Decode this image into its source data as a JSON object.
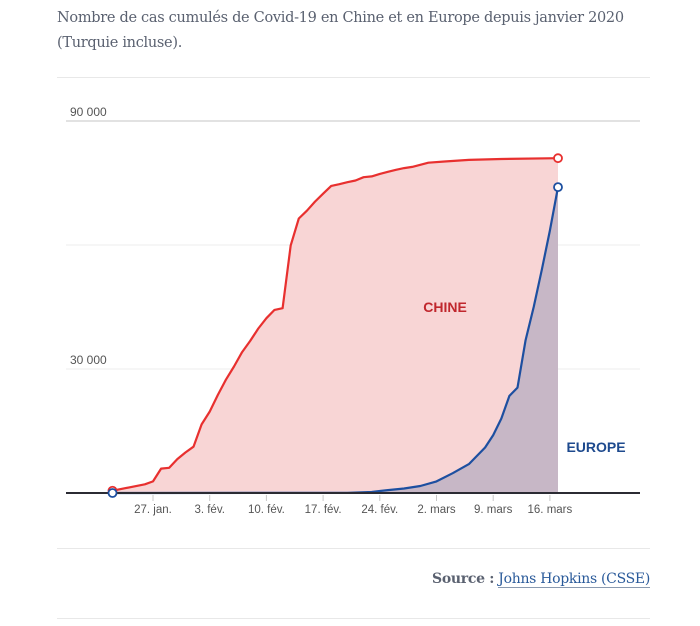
{
  "header": {
    "title": "Nombre de cas cumulés de Covid-19 en Chine et en Europe depuis janvier 2020 (Turquie incluse)."
  },
  "footer": {
    "source_label": "Source :",
    "source_link": "Johns Hopkins (CSSE)"
  },
  "chart_data": {
    "type": "area",
    "title": "Nombre de cas cumulés de Covid-19 en Chine et en Europe depuis janvier 2020 (Turquie incluse).",
    "xlabel": "",
    "ylabel": "",
    "xlim": [
      "2020-01-22",
      "2020-03-17"
    ],
    "ylim": [
      0,
      90000
    ],
    "grid": true,
    "legend": "inline labels",
    "y_ticks": [
      {
        "value": 30000,
        "label": "30 000"
      },
      {
        "value": 60000,
        "label": ""
      },
      {
        "value": 90000,
        "label": "90 000"
      }
    ],
    "x_ticks": [
      {
        "date": "2020-01-27",
        "label": "27. jan."
      },
      {
        "date": "2020-02-03",
        "label": "3. fév."
      },
      {
        "date": "2020-02-10",
        "label": "10. fév."
      },
      {
        "date": "2020-02-17",
        "label": "17. fév."
      },
      {
        "date": "2020-02-24",
        "label": "24. fév."
      },
      {
        "date": "2020-03-02",
        "label": "2. mars"
      },
      {
        "date": "2020-03-09",
        "label": "9. mars"
      },
      {
        "date": "2020-03-16",
        "label": "16. mars"
      }
    ],
    "series": [
      {
        "name": "CHINE",
        "color": "#e8302f",
        "fill": "#f8d5d5",
        "label_color": "#c0272d",
        "points": [
          [
            "2020-01-22",
            550
          ],
          [
            "2020-01-26",
            2100
          ],
          [
            "2020-01-27",
            2800
          ],
          [
            "2020-01-28",
            5900
          ],
          [
            "2020-01-29",
            6100
          ],
          [
            "2020-01-30",
            8200
          ],
          [
            "2020-01-31",
            9800
          ],
          [
            "2020-02-01",
            11200
          ],
          [
            "2020-02-02",
            16600
          ],
          [
            "2020-02-03",
            19700
          ],
          [
            "2020-02-04",
            23700
          ],
          [
            "2020-02-05",
            27400
          ],
          [
            "2020-02-06",
            30600
          ],
          [
            "2020-02-07",
            34100
          ],
          [
            "2020-02-08",
            36800
          ],
          [
            "2020-02-09",
            39800
          ],
          [
            "2020-02-10",
            42300
          ],
          [
            "2020-02-11",
            44300
          ],
          [
            "2020-02-12",
            44700
          ],
          [
            "2020-02-13",
            59900
          ],
          [
            "2020-02-14",
            66400
          ],
          [
            "2020-02-15",
            68300
          ],
          [
            "2020-02-16",
            70500
          ],
          [
            "2020-02-17",
            72400
          ],
          [
            "2020-02-18",
            74300
          ],
          [
            "2020-02-19",
            74700
          ],
          [
            "2020-02-20",
            75200
          ],
          [
            "2020-02-21",
            75600
          ],
          [
            "2020-02-22",
            76400
          ],
          [
            "2020-02-23",
            76600
          ],
          [
            "2020-02-24",
            77200
          ],
          [
            "2020-02-25",
            77700
          ],
          [
            "2020-02-26",
            78200
          ],
          [
            "2020-02-27",
            78600
          ],
          [
            "2020-02-28",
            78900
          ],
          [
            "2020-02-29",
            79400
          ],
          [
            "2020-03-01",
            79900
          ],
          [
            "2020-03-03",
            80200
          ],
          [
            "2020-03-06",
            80600
          ],
          [
            "2020-03-10",
            80800
          ],
          [
            "2020-03-17",
            81000
          ]
        ]
      },
      {
        "name": "EUROPE",
        "color": "#1d4fa0",
        "fill": "#c7b7c6",
        "label_color": "#1e4a8e",
        "points": [
          [
            "2020-01-22",
            0
          ],
          [
            "2020-02-20",
            50
          ],
          [
            "2020-02-23",
            250
          ],
          [
            "2020-02-25",
            700
          ],
          [
            "2020-02-27",
            1100
          ],
          [
            "2020-02-29",
            1700
          ],
          [
            "2020-03-02",
            2800
          ],
          [
            "2020-03-04",
            4800
          ],
          [
            "2020-03-06",
            7000
          ],
          [
            "2020-03-08",
            11000
          ],
          [
            "2020-03-09",
            14000
          ],
          [
            "2020-03-10",
            18000
          ],
          [
            "2020-03-11",
            23500
          ],
          [
            "2020-03-12",
            25500
          ],
          [
            "2020-03-13",
            37000
          ],
          [
            "2020-03-14",
            45000
          ],
          [
            "2020-03-15",
            54000
          ],
          [
            "2020-03-16",
            63500
          ],
          [
            "2020-03-17",
            74000
          ]
        ]
      }
    ]
  }
}
